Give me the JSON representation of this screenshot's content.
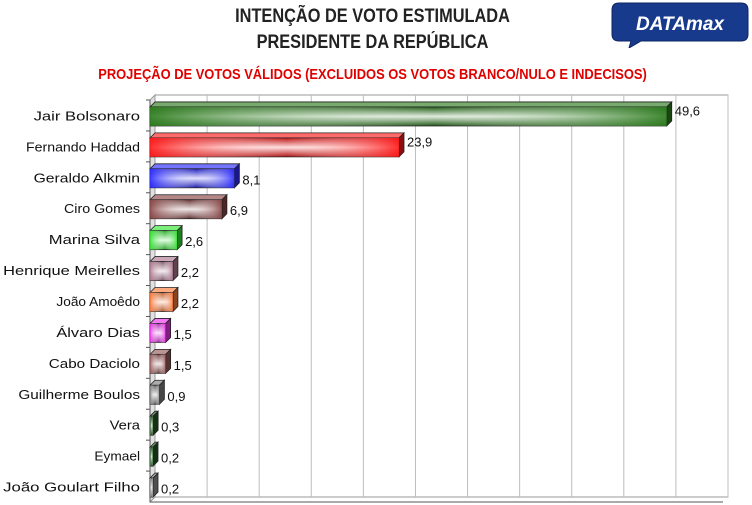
{
  "header": {
    "title_line1": "INTENÇÃO DE VOTO ESTIMULADA",
    "title_line2": "PRESIDENTE DA REPÚBLICA",
    "subtitle": "PROJEÇÃO DE VOTOS VÁLIDOS (EXCLUIDOS OS VOTOS BRANCO/NULO E INDECISOS)",
    "logo_text": "DATAmax"
  },
  "colors": {
    "title": "#222222",
    "subtitle": "#e00000",
    "logo_bg": "#173a8c",
    "logo_text": "#ffffff"
  },
  "chart_data": {
    "type": "bar",
    "orientation": "horizontal",
    "categories": [
      "Jair Bolsonaro",
      "Fernando Haddad",
      "Geraldo Alkmin",
      "Ciro Gomes",
      "Marina Silva",
      "Henrique Meirelles",
      "João Amoêdo",
      "Álvaro Dias",
      "Cabo Daciolo",
      "Guilherme Boulos",
      "Vera",
      "Eymael",
      "João Goulart Filho"
    ],
    "values": [
      49.6,
      23.9,
      8.1,
      6.9,
      2.6,
      2.2,
      2.2,
      1.5,
      1.5,
      0.9,
      0.3,
      0.2,
      0.2
    ],
    "value_labels": [
      "49,6",
      "23,9",
      "8,1",
      "6,9",
      "2,6",
      "2,2",
      "2,2",
      "1,5",
      "1,5",
      "0,9",
      "0,3",
      "0,2",
      "0,2"
    ],
    "bar_colors": [
      "#2e7d1f",
      "#ff1a1a",
      "#2b2bff",
      "#8a4646",
      "#33e633",
      "#b07890",
      "#ff7a3a",
      "#ee33ee",
      "#9a5a5a",
      "#808080",
      "#1f5a1f",
      "#1f5a1f",
      "#909090"
    ],
    "xlim": [
      0,
      55
    ],
    "grid": "vertical",
    "legend": "none"
  }
}
